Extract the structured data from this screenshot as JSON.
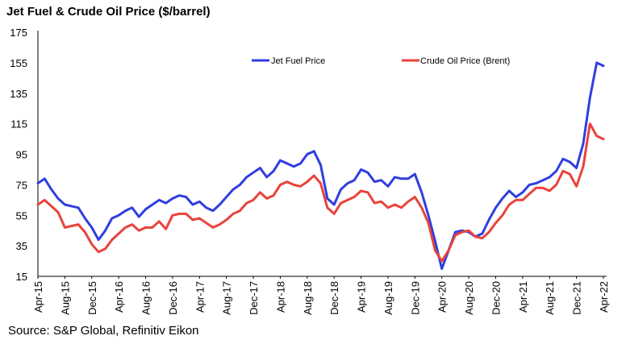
{
  "chart_data": {
    "type": "line",
    "title": "Jet Fuel & Crude Oil Price ($/barrel)",
    "source": "Source: S&P Global, Refinitiv Eikon",
    "xlabel": "",
    "ylabel": "",
    "ylim": [
      15,
      175
    ],
    "y_ticks": [
      "15",
      "35",
      "55",
      "75",
      "95",
      "115",
      "135",
      "155",
      "175"
    ],
    "x_ticks": [
      "Apr-15",
      "Aug-15",
      "Dec-15",
      "Apr-16",
      "Aug-16",
      "Dec-16",
      "Apr-17",
      "Aug-17",
      "Dec-17",
      "Apr-18",
      "Aug-18",
      "Dec-18",
      "Apr-19",
      "Aug-19",
      "Dec-19",
      "Apr-20",
      "Aug-20",
      "Dec-20",
      "Apr-21",
      "Aug-21",
      "Dec-21",
      "Apr-22"
    ],
    "grid": false,
    "legend_position": "top",
    "colors": {
      "jet": "#2f3ee0",
      "crude": "#e8433b"
    },
    "series": [
      {
        "name": "Jet Fuel Price",
        "color": "#2f3ee0",
        "x": [
          "2015-04",
          "2015-05",
          "2015-06",
          "2015-07",
          "2015-08",
          "2015-09",
          "2015-10",
          "2015-11",
          "2015-12",
          "2016-01",
          "2016-02",
          "2016-03",
          "2016-04",
          "2016-05",
          "2016-06",
          "2016-07",
          "2016-08",
          "2016-09",
          "2016-10",
          "2016-11",
          "2016-12",
          "2017-01",
          "2017-02",
          "2017-03",
          "2017-04",
          "2017-05",
          "2017-06",
          "2017-07",
          "2017-08",
          "2017-09",
          "2017-10",
          "2017-11",
          "2017-12",
          "2018-01",
          "2018-02",
          "2018-03",
          "2018-04",
          "2018-05",
          "2018-06",
          "2018-07",
          "2018-08",
          "2018-09",
          "2018-10",
          "2018-11",
          "2018-12",
          "2019-01",
          "2019-02",
          "2019-03",
          "2019-04",
          "2019-05",
          "2019-06",
          "2019-07",
          "2019-08",
          "2019-09",
          "2019-10",
          "2019-11",
          "2019-12",
          "2020-01",
          "2020-02",
          "2020-03",
          "2020-04",
          "2020-05",
          "2020-06",
          "2020-07",
          "2020-08",
          "2020-09",
          "2020-10",
          "2020-11",
          "2020-12",
          "2021-01",
          "2021-02",
          "2021-03",
          "2021-04",
          "2021-05",
          "2021-06",
          "2021-07",
          "2021-08",
          "2021-09",
          "2021-10",
          "2021-11",
          "2021-12",
          "2022-01",
          "2022-02",
          "2022-03",
          "2022-04"
        ],
        "values": [
          76,
          79,
          72,
          66,
          62,
          61,
          60,
          53,
          47,
          39,
          45,
          53,
          55,
          58,
          60,
          54,
          59,
          62,
          65,
          63,
          66,
          68,
          67,
          62,
          64,
          60,
          58,
          62,
          67,
          72,
          75,
          80,
          83,
          86,
          80,
          84,
          91,
          89,
          87,
          89,
          95,
          97,
          88,
          66,
          62,
          72,
          76,
          78,
          85,
          83,
          77,
          78,
          74,
          80,
          79,
          79,
          82,
          70,
          55,
          38,
          20,
          32,
          44,
          45,
          44,
          41,
          43,
          52,
          60,
          66,
          71,
          67,
          70,
          75,
          76,
          78,
          80,
          84,
          92,
          90,
          86,
          102,
          132,
          155,
          153
        ]
      },
      {
        "name": "Crude Oil Price (Brent)",
        "color": "#e8433b",
        "x": [
          "2015-04",
          "2015-05",
          "2015-06",
          "2015-07",
          "2015-08",
          "2015-09",
          "2015-10",
          "2015-11",
          "2015-12",
          "2016-01",
          "2016-02",
          "2016-03",
          "2016-04",
          "2016-05",
          "2016-06",
          "2016-07",
          "2016-08",
          "2016-09",
          "2016-10",
          "2016-11",
          "2016-12",
          "2017-01",
          "2017-02",
          "2017-03",
          "2017-04",
          "2017-05",
          "2017-06",
          "2017-07",
          "2017-08",
          "2017-09",
          "2017-10",
          "2017-11",
          "2017-12",
          "2018-01",
          "2018-02",
          "2018-03",
          "2018-04",
          "2018-05",
          "2018-06",
          "2018-07",
          "2018-08",
          "2018-09",
          "2018-10",
          "2018-11",
          "2018-12",
          "2019-01",
          "2019-02",
          "2019-03",
          "2019-04",
          "2019-05",
          "2019-06",
          "2019-07",
          "2019-08",
          "2019-09",
          "2019-10",
          "2019-11",
          "2019-12",
          "2020-01",
          "2020-02",
          "2020-03",
          "2020-04",
          "2020-05",
          "2020-06",
          "2020-07",
          "2020-08",
          "2020-09",
          "2020-10",
          "2020-11",
          "2020-12",
          "2021-01",
          "2021-02",
          "2021-03",
          "2021-04",
          "2021-05",
          "2021-06",
          "2021-07",
          "2021-08",
          "2021-09",
          "2021-10",
          "2021-11",
          "2021-12",
          "2022-01",
          "2022-02",
          "2022-03",
          "2022-04"
        ],
        "values": [
          62,
          65,
          61,
          57,
          47,
          48,
          49,
          44,
          36,
          31,
          33,
          39,
          43,
          47,
          49,
          45,
          47,
          47,
          51,
          46,
          55,
          56,
          56,
          52,
          53,
          50,
          47,
          49,
          52,
          56,
          58,
          63,
          65,
          70,
          66,
          68,
          75,
          77,
          75,
          74,
          77,
          81,
          76,
          60,
          56,
          63,
          65,
          67,
          71,
          70,
          63,
          64,
          60,
          62,
          60,
          64,
          67,
          60,
          50,
          32,
          25,
          32,
          42,
          44,
          45,
          41,
          40,
          44,
          50,
          55,
          62,
          65,
          65,
          69,
          73,
          73,
          71,
          75,
          84,
          82,
          74,
          87,
          115,
          107,
          105
        ]
      }
    ]
  }
}
